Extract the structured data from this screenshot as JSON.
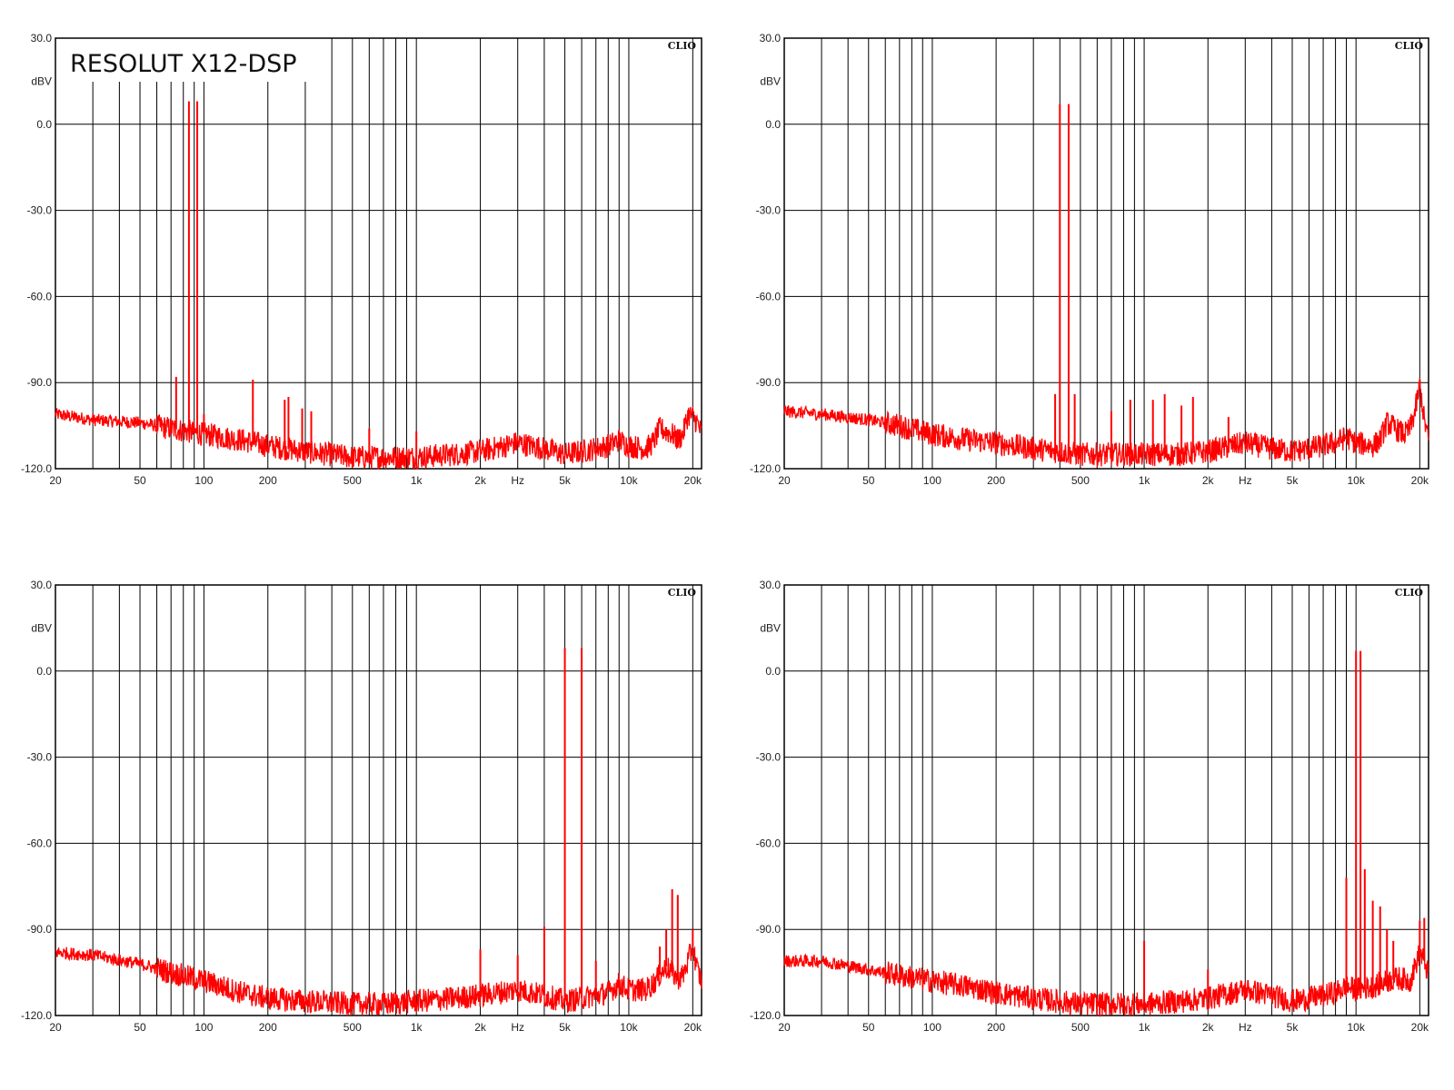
{
  "title": "RESOLUT X12-DSP",
  "brand": "CLIO",
  "colors": {
    "trace": "#ff0000",
    "grid": "#000000",
    "background": "#ffffff"
  },
  "chart_data": [
    {
      "type": "line",
      "xscale": "log",
      "xlim": [
        20,
        22000
      ],
      "ylim": [
        -120,
        30
      ],
      "yunit_label": "dBV",
      "xunit_label": "Hz",
      "y_ticks": [
        "30.0",
        "0.0",
        "-30.0",
        "-60.0",
        "-90.0",
        "-120.0"
      ],
      "x_ticks": [
        "20",
        "50",
        "100",
        "200",
        "500",
        "1k",
        "2k",
        "5k",
        "10k",
        "20k"
      ],
      "grid": true,
      "noise_floor": [
        [
          20,
          -101
        ],
        [
          30,
          -103
        ],
        [
          50,
          -104
        ],
        [
          70,
          -106
        ],
        [
          100,
          -108
        ],
        [
          150,
          -110
        ],
        [
          200,
          -112
        ],
        [
          300,
          -114
        ],
        [
          500,
          -116
        ],
        [
          700,
          -116
        ],
        [
          1000,
          -116
        ],
        [
          1500,
          -115
        ],
        [
          2000,
          -114
        ],
        [
          3000,
          -111
        ],
        [
          4000,
          -113
        ],
        [
          5000,
          -115
        ],
        [
          6000,
          -114
        ],
        [
          8000,
          -112
        ],
        [
          9000,
          -110
        ],
        [
          10000,
          -112
        ],
        [
          12000,
          -113
        ],
        [
          13000,
          -111
        ],
        [
          14000,
          -106
        ],
        [
          16000,
          -108
        ],
        [
          17000,
          -110
        ],
        [
          18000,
          -108
        ],
        [
          19000,
          -101
        ],
        [
          20000,
          -102
        ],
        [
          21000,
          -104
        ],
        [
          22000,
          -108
        ]
      ],
      "peaks": [
        [
          74,
          -88
        ],
        [
          85,
          8
        ],
        [
          93,
          8
        ],
        [
          100,
          -101
        ],
        [
          170,
          -89
        ],
        [
          240,
          -96
        ],
        [
          250,
          -95
        ],
        [
          290,
          -99
        ],
        [
          320,
          -100
        ],
        [
          600,
          -106
        ],
        [
          1000,
          -107
        ]
      ]
    },
    {
      "type": "line",
      "xscale": "log",
      "xlim": [
        20,
        22000
      ],
      "ylim": [
        -120,
        30
      ],
      "yunit_label": "dBV",
      "xunit_label": "Hz",
      "y_ticks": [
        "30.0",
        "0.0",
        "-30.0",
        "-60.0",
        "-90.0",
        "-120.0"
      ],
      "x_ticks": [
        "20",
        "50",
        "100",
        "200",
        "500",
        "1k",
        "2k",
        "5k",
        "10k",
        "20k"
      ],
      "grid": true,
      "noise_floor": [
        [
          20,
          -100
        ],
        [
          30,
          -101
        ],
        [
          50,
          -103
        ],
        [
          70,
          -105
        ],
        [
          100,
          -108
        ],
        [
          150,
          -110
        ],
        [
          200,
          -111
        ],
        [
          300,
          -113
        ],
        [
          500,
          -115
        ],
        [
          700,
          -115
        ],
        [
          1000,
          -115
        ],
        [
          1500,
          -115
        ],
        [
          2000,
          -114
        ],
        [
          3000,
          -111
        ],
        [
          4000,
          -113
        ],
        [
          5000,
          -114
        ],
        [
          6000,
          -113
        ],
        [
          8000,
          -111
        ],
        [
          9000,
          -109
        ],
        [
          10000,
          -111
        ],
        [
          12000,
          -112
        ],
        [
          13000,
          -110
        ],
        [
          14000,
          -104
        ],
        [
          16000,
          -107
        ],
        [
          17000,
          -108
        ],
        [
          18000,
          -106
        ],
        [
          19000,
          -100
        ],
        [
          20000,
          -91
        ],
        [
          21000,
          -103
        ],
        [
          22000,
          -110
        ]
      ],
      "peaks": [
        [
          380,
          -94
        ],
        [
          400,
          7
        ],
        [
          440,
          7
        ],
        [
          470,
          -94
        ],
        [
          700,
          -100
        ],
        [
          860,
          -96
        ],
        [
          1100,
          -96
        ],
        [
          1250,
          -94
        ],
        [
          1500,
          -98
        ],
        [
          1700,
          -95
        ],
        [
          2500,
          -102
        ],
        [
          20000,
          -89
        ]
      ]
    },
    {
      "type": "line",
      "xscale": "log",
      "xlim": [
        20,
        22000
      ],
      "ylim": [
        -120,
        30
      ],
      "yunit_label": "dBV",
      "xunit_label": "Hz",
      "y_ticks": [
        "30.0",
        "0.0",
        "-30.0",
        "-60.0",
        "-90.0",
        "-120.0"
      ],
      "x_ticks": [
        "20",
        "50",
        "100",
        "200",
        "500",
        "1k",
        "2k",
        "5k",
        "10k",
        "20k"
      ],
      "grid": true,
      "noise_floor": [
        [
          20,
          -98
        ],
        [
          30,
          -99
        ],
        [
          50,
          -102
        ],
        [
          70,
          -105
        ],
        [
          100,
          -108
        ],
        [
          150,
          -112
        ],
        [
          200,
          -114
        ],
        [
          300,
          -115
        ],
        [
          500,
          -116
        ],
        [
          700,
          -116
        ],
        [
          1000,
          -115
        ],
        [
          1500,
          -114
        ],
        [
          2000,
          -113
        ],
        [
          3000,
          -111
        ],
        [
          4000,
          -113
        ],
        [
          5000,
          -115
        ],
        [
          6000,
          -114
        ],
        [
          8000,
          -112
        ],
        [
          9000,
          -109
        ],
        [
          10000,
          -111
        ],
        [
          12000,
          -111
        ],
        [
          13000,
          -109
        ],
        [
          15000,
          -103
        ],
        [
          17000,
          -107
        ],
        [
          18000,
          -106
        ],
        [
          19000,
          -101
        ],
        [
          20000,
          -96
        ],
        [
          21000,
          -104
        ],
        [
          22000,
          -108
        ]
      ],
      "peaks": [
        [
          2000,
          -97
        ],
        [
          3000,
          -99
        ],
        [
          4000,
          -89
        ],
        [
          5000,
          8
        ],
        [
          6000,
          8
        ],
        [
          7000,
          -101
        ],
        [
          14000,
          -96
        ],
        [
          15000,
          -90
        ],
        [
          16000,
          -76
        ],
        [
          17000,
          -78
        ],
        [
          20000,
          -90
        ]
      ]
    },
    {
      "type": "line",
      "xscale": "log",
      "xlim": [
        20,
        22000
      ],
      "ylim": [
        -120,
        30
      ],
      "yunit_label": "dBV",
      "xunit_label": "Hz",
      "y_ticks": [
        "30.0",
        "0.0",
        "-30.0",
        "-60.0",
        "-90.0",
        "-120.0"
      ],
      "x_ticks": [
        "20",
        "50",
        "100",
        "200",
        "500",
        "1k",
        "2k",
        "5k",
        "10k",
        "20k"
      ],
      "grid": true,
      "noise_floor": [
        [
          20,
          -101
        ],
        [
          30,
          -101
        ],
        [
          50,
          -104
        ],
        [
          70,
          -106
        ],
        [
          100,
          -108
        ],
        [
          150,
          -110
        ],
        [
          200,
          -112
        ],
        [
          300,
          -114
        ],
        [
          500,
          -116
        ],
        [
          700,
          -116
        ],
        [
          1000,
          -116
        ],
        [
          1500,
          -115
        ],
        [
          2000,
          -114
        ],
        [
          3000,
          -111
        ],
        [
          4000,
          -113
        ],
        [
          5000,
          -115
        ],
        [
          6000,
          -114
        ],
        [
          8000,
          -112
        ],
        [
          9000,
          -110
        ],
        [
          10000,
          -111
        ],
        [
          12000,
          -110
        ],
        [
          14000,
          -108
        ],
        [
          16000,
          -107
        ],
        [
          18000,
          -108
        ],
        [
          19000,
          -103
        ],
        [
          20000,
          -98
        ],
        [
          21000,
          -101
        ],
        [
          22000,
          -106
        ]
      ],
      "peaks": [
        [
          1000,
          -94
        ],
        [
          2000,
          -104
        ],
        [
          9000,
          -72
        ],
        [
          10000,
          7
        ],
        [
          10500,
          7
        ],
        [
          11000,
          -69
        ],
        [
          12000,
          -80
        ],
        [
          13000,
          -82
        ],
        [
          14000,
          -90
        ],
        [
          15000,
          -94
        ],
        [
          20000,
          -87
        ],
        [
          21000,
          -86
        ]
      ]
    }
  ]
}
